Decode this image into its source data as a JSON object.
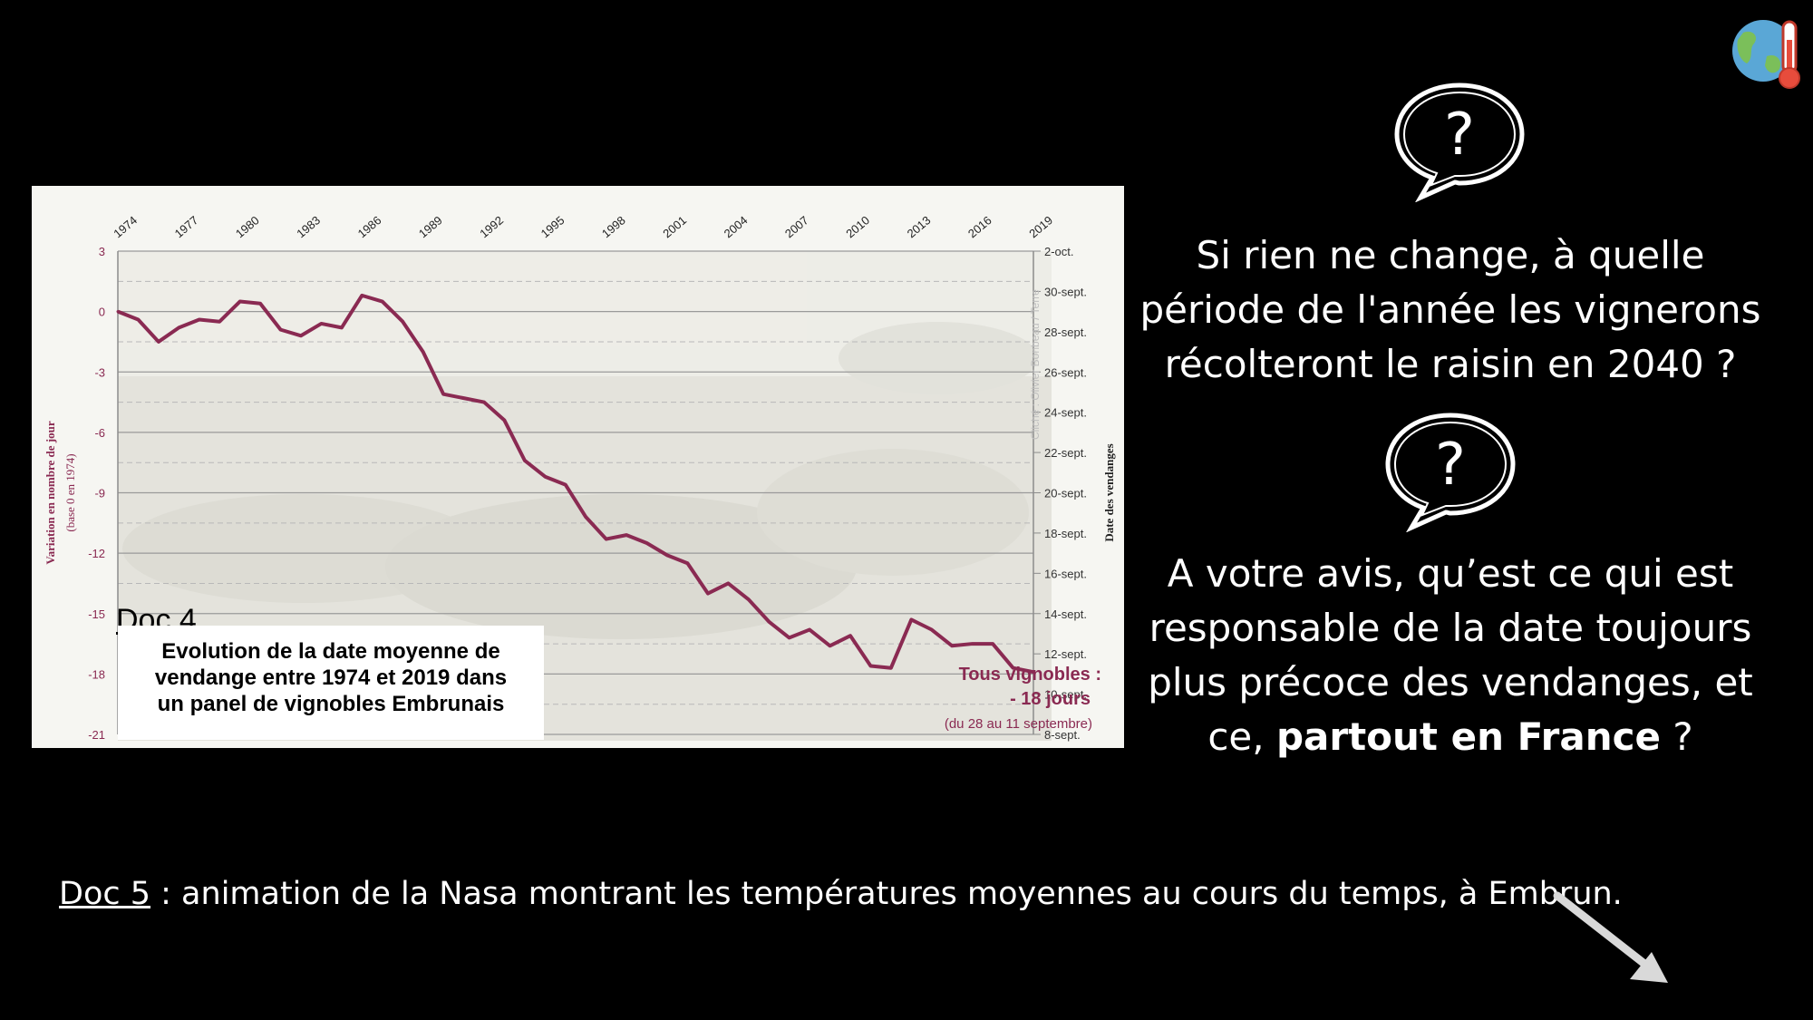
{
  "chart_data": {
    "type": "line",
    "title": "Evolution de la date moyenne de vendange entre 1974 et 2019 dans un panel de vignobles Embrunais",
    "title_lines": [
      "Evolution de la date moyenne de",
      "vendange entre 1974 et 2019 dans",
      "un panel de vignobles Embrunais"
    ],
    "doc_label": "Doc 4",
    "ylabel": "Variation en nombre de jour",
    "ylabel_sub": "(base 0 en 1974)",
    "y2label": "Date des vendanges",
    "ylim": [
      -21,
      3
    ],
    "xlim": [
      1974,
      2019
    ],
    "y_ticks": [
      "3",
      "0",
      "-3",
      "-6",
      "-9",
      "-12",
      "-15",
      "-18",
      "-21"
    ],
    "x_ticks": [
      "1974",
      "1977",
      "1980",
      "1983",
      "1986",
      "1989",
      "1992",
      "1995",
      "1998",
      "2001",
      "2004",
      "2007",
      "2010",
      "2013",
      "2016",
      "2019"
    ],
    "y2_ticks": [
      "2-oct.",
      "30-sept.",
      "28-sept.",
      "26-sept.",
      "24-sept.",
      "22-sept.",
      "20-sept.",
      "18-sept.",
      "16-sept.",
      "14-sept.",
      "12-sept.",
      "10-sept.",
      "8-sept."
    ],
    "series": [
      {
        "color": "#8a2a52",
        "x": [
          1974,
          1975,
          1976,
          1977,
          1978,
          1979,
          1980,
          1981,
          1982,
          1983,
          1984,
          1985,
          1986,
          1987,
          1988,
          1989,
          1990,
          1991,
          1992,
          1993,
          1994,
          1995,
          1996,
          1997,
          1998,
          1999,
          2000,
          2001,
          2002,
          2003,
          2004,
          2005,
          2006,
          2007,
          2008,
          2009,
          2010,
          2011,
          2012,
          2013,
          2014,
          2015,
          2016,
          2017,
          2018,
          2019
        ],
        "values": [
          0,
          -0.4,
          -1.5,
          -0.8,
          -0.4,
          -0.5,
          0.5,
          0.4,
          -0.9,
          -1.2,
          -0.6,
          -0.8,
          0.8,
          0.5,
          -0.5,
          -2,
          -4.1,
          -4.3,
          -4.5,
          -5.4,
          -7.4,
          -8.2,
          -8.6,
          -10.2,
          -11.3,
          -11.1,
          -11.5,
          -12.1,
          -12.5,
          -14,
          -13.5,
          -14.3,
          -15.4,
          -16.2,
          -15.8,
          -16.6,
          -16.1,
          -17.6,
          -17.7,
          -15.3,
          -15.8,
          -16.6,
          -16.5,
          -16.5,
          -17.7,
          -17.9
        ]
      }
    ],
    "annotation": {
      "title": "Tous vignobles :",
      "value": "- 18 jours",
      "range": "(du 28 au 11 septembre)"
    },
    "credit": "Cliché : Olivier Bonbeau / Terre",
    "grid": true
  },
  "questions": {
    "q1": [
      "Si rien ne change, à quelle",
      "période de l'année les vignerons",
      "récolteront le raisin en 2040 ?"
    ],
    "q2_lines": [
      "A votre avis, qu’est ce qui est",
      "responsable de la date toujours",
      "plus précoce des vendanges, et"
    ],
    "q2_last_prefix": "ce, ",
    "q2_last_bold": "partout en France",
    "q2_last_suffix": " ?"
  },
  "bottom": {
    "doc_label": "Doc 5",
    "text": " : animation de la Nasa montrant les températures moyennes au cours du temps, à Embrun."
  },
  "icons": {
    "bubble": "question-speech-bubble-icon",
    "arrow": "arrow-down-right-icon",
    "logo": "globe-thermometer-icon"
  },
  "colors": {
    "line": "#8a2a52",
    "background": "#000000",
    "chart_bg": "#f6f6f2"
  }
}
